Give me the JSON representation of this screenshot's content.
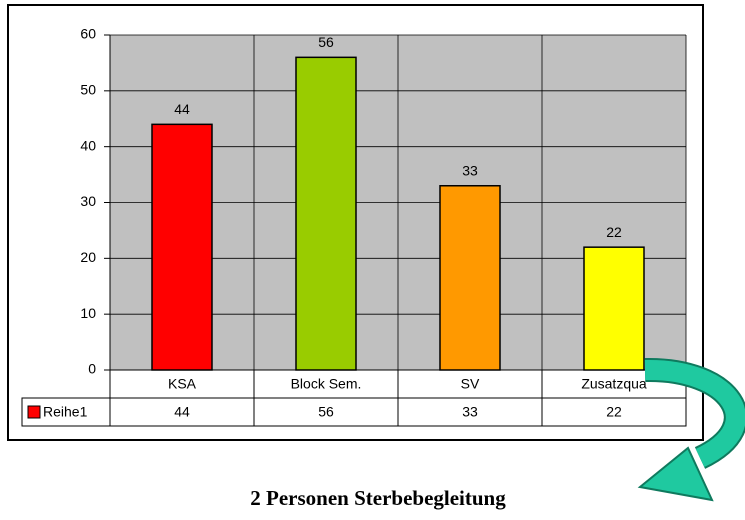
{
  "chart_data": {
    "type": "bar",
    "title": "2 Personen Sterbebegleitung",
    "categories": [
      "KSA",
      "Block Sem.",
      "SV",
      "Zusatzqua"
    ],
    "series": [
      {
        "name": "Reihe1",
        "colors": [
          "#ff0000",
          "#99cc00",
          "#ff9900",
          "#ffff00"
        ],
        "values": [
          44,
          56,
          33,
          22
        ]
      }
    ],
    "ylim": [
      0,
      60
    ],
    "yticks": [
      0,
      10,
      20,
      30,
      40,
      50,
      60
    ],
    "grid": true
  }
}
